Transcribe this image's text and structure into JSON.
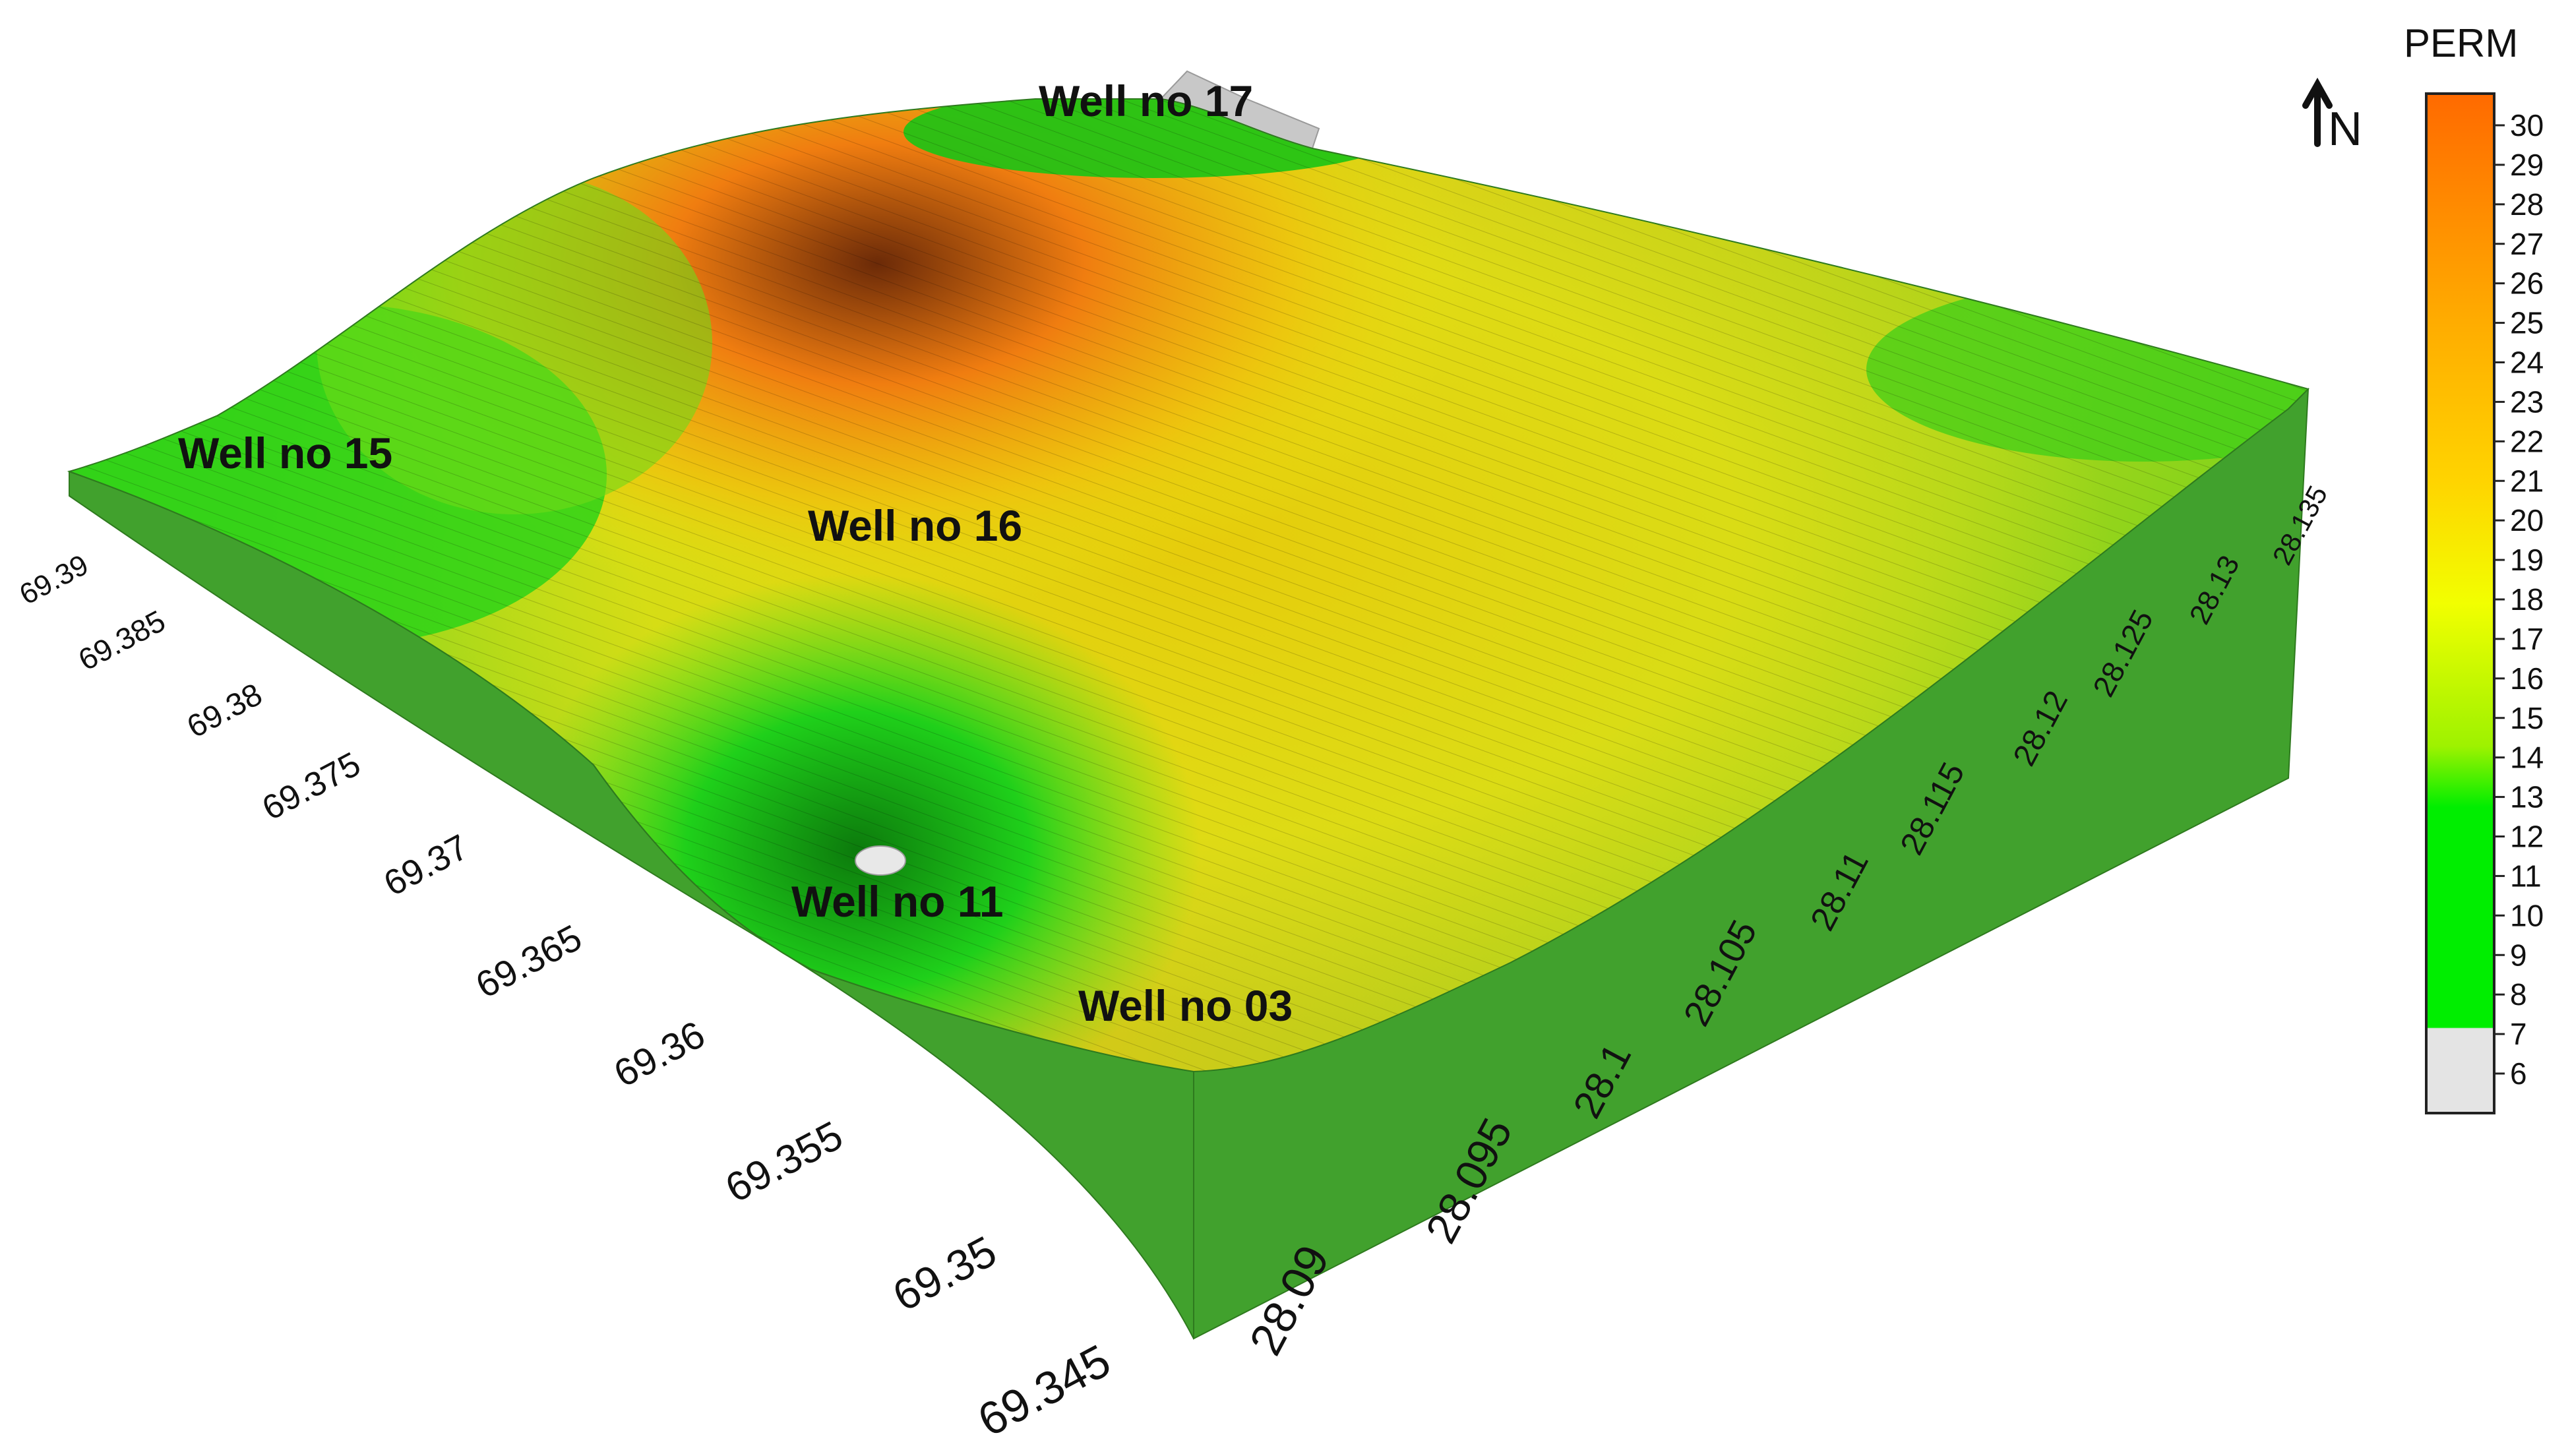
{
  "chart_data": {
    "type": "heatmap",
    "subtype": "3d-surface",
    "x_axis": {
      "ticks": [
        "69.39",
        "69.385",
        "69.38",
        "69.375",
        "69.37",
        "69.365",
        "69.36",
        "69.355",
        "69.35",
        "69.345"
      ]
    },
    "y_axis": {
      "ticks": [
        "28.09",
        "28.095",
        "28.1",
        "28.105",
        "28.11",
        "28.115",
        "28.12",
        "28.125",
        "28.13",
        "28.135"
      ]
    },
    "wells": [
      {
        "label": "Well no 17",
        "x": 69.383,
        "y": 28.134
      },
      {
        "label": "Well no 15",
        "x": 69.389,
        "y": 28.094
      },
      {
        "label": "Well no 16",
        "x": 69.376,
        "y": 28.108
      },
      {
        "label": "Well no 11",
        "x": 69.362,
        "y": 28.1
      },
      {
        "label": "Well no 03",
        "x": 69.348,
        "y": 28.102
      }
    ],
    "colorbar": {
      "title": "PERM",
      "range": [
        6,
        30
      ],
      "ticks": [
        "30",
        "29",
        "28",
        "27",
        "26",
        "25",
        "24",
        "23",
        "22",
        "21",
        "20",
        "19",
        "18",
        "17",
        "16",
        "15",
        "14",
        "13",
        "12",
        "11",
        "10",
        "9",
        "8",
        "7",
        "6"
      ],
      "colors": [
        {
          "min": 6,
          "max": 8,
          "color": "#e4e4e4"
        },
        {
          "min": 8,
          "max": 13.5,
          "color": "#00ee00"
        },
        {
          "min": 13.5,
          "max": 18,
          "color": "#f2ff00"
        },
        {
          "min": 18,
          "max": 24,
          "color": "#ffc800"
        },
        {
          "min": 24,
          "max": 30,
          "color": "#ff6a00"
        }
      ]
    },
    "north_label": "N",
    "surface_colors": {
      "side": "#41a12d",
      "green": "#22d21b",
      "yellow": "#e7e20f",
      "orange": "#f07d10",
      "dark": "#6b2a08"
    }
  }
}
